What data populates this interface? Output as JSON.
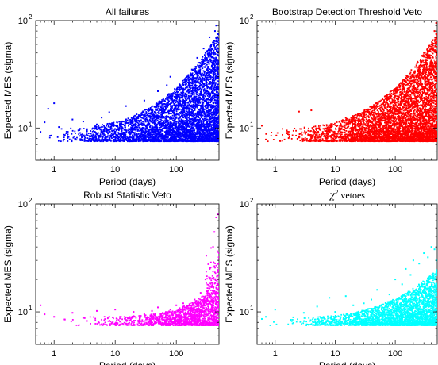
{
  "chart_data": [
    {
      "type": "scatter",
      "title": "All failures",
      "xlabel": "Period (days)",
      "ylabel": "Expected MES (sigma)",
      "xscale": "log",
      "yscale": "log",
      "xlim": [
        0.5,
        500
      ],
      "ylim": [
        5,
        100
      ],
      "xticks": [
        {
          "value": 1,
          "label": "1"
        },
        {
          "value": 10,
          "label": "10"
        },
        {
          "value": 100,
          "label": "100"
        }
      ],
      "yticks": [
        {
          "value": 10,
          "base": "10",
          "exp": "1"
        },
        {
          "value": 100,
          "base": "10",
          "exp": "2"
        }
      ],
      "color": "#0000ff",
      "density": "dense",
      "points": [
        [
          0.6,
          9.2
        ],
        [
          0.7,
          11.3
        ],
        [
          0.8,
          15.1
        ],
        [
          0.9,
          8.5
        ],
        [
          1.0,
          17.0
        ],
        [
          1.2,
          10.2
        ],
        [
          1.5,
          8.6
        ],
        [
          2.0,
          12.0
        ],
        [
          2.5,
          9.5
        ],
        [
          3.0,
          11.5
        ],
        [
          4.0,
          8.9
        ],
        [
          5.0,
          10.8
        ],
        [
          6.0,
          12.5
        ],
        [
          8.0,
          14.0
        ],
        [
          10.0,
          9.8
        ],
        [
          12.0,
          11.0
        ],
        [
          15.0,
          16.0
        ],
        [
          20.0,
          10.5
        ],
        [
          25.0,
          13.0
        ],
        [
          30.0,
          18.0
        ],
        [
          40.0,
          12.0
        ],
        [
          50.0,
          22.0
        ],
        [
          60.0,
          15.0
        ],
        [
          70.0,
          25.0
        ],
        [
          80.0,
          30.0
        ],
        [
          100.0,
          18.0
        ],
        [
          120.0,
          20.0
        ],
        [
          150.0,
          28.0
        ],
        [
          180.0,
          35.0
        ],
        [
          200.0,
          25.0
        ],
        [
          220.0,
          45.0
        ],
        [
          250.0,
          40.0
        ],
        [
          280.0,
          55.0
        ],
        [
          300.0,
          50.0
        ],
        [
          350.0,
          70.0
        ],
        [
          400.0,
          60.0
        ],
        [
          430.0,
          80.0
        ],
        [
          450.0,
          90.0
        ],
        [
          480.0,
          75.0
        ],
        [
          500.0,
          65.0
        ]
      ]
    },
    {
      "type": "scatter",
      "title": "Bootstrap Detection Threshold Veto",
      "xlabel": "Period (days)",
      "ylabel": "Expected MES (sigma)",
      "xscale": "log",
      "yscale": "log",
      "xlim": [
        0.5,
        500
      ],
      "ylim": [
        5,
        100
      ],
      "xticks": [
        {
          "value": 1,
          "label": "1"
        },
        {
          "value": 10,
          "label": "10"
        },
        {
          "value": 100,
          "label": "100"
        }
      ],
      "yticks": [
        {
          "value": 10,
          "base": "10",
          "exp": "1"
        },
        {
          "value": 100,
          "base": "10",
          "exp": "2"
        }
      ],
      "color": "#ff0000",
      "density": "dense",
      "points": [
        [
          0.6,
          10.5
        ],
        [
          0.7,
          7.8
        ],
        [
          2.5,
          14.2
        ],
        [
          4.0,
          14.6
        ],
        [
          8.0,
          9.2
        ],
        [
          12.0,
          10.3
        ],
        [
          15.0,
          12.5
        ],
        [
          20.0,
          9.5
        ],
        [
          30.0,
          11.8
        ],
        [
          40.0,
          13.5
        ],
        [
          50.0,
          10.8
        ],
        [
          60.0,
          16.0
        ],
        [
          80.0,
          12.5
        ],
        [
          100.0,
          20.0
        ],
        [
          120.0,
          15.0
        ],
        [
          150.0,
          25.0
        ],
        [
          180.0,
          30.0
        ],
        [
          200.0,
          22.0
        ],
        [
          230.0,
          40.0
        ],
        [
          260.0,
          35.0
        ],
        [
          300.0,
          50.0
        ],
        [
          350.0,
          45.0
        ],
        [
          400.0,
          60.0
        ],
        [
          450.0,
          80.0
        ],
        [
          480.0,
          95.0
        ],
        [
          500.0,
          70.0
        ]
      ]
    },
    {
      "type": "scatter",
      "title": "Robust Statistic Veto",
      "xlabel": "Period (days)",
      "ylabel": "Expected MES (sigma)",
      "xscale": "log",
      "yscale": "log",
      "xlim": [
        0.5,
        500
      ],
      "ylim": [
        5,
        100
      ],
      "xticks": [
        {
          "value": 1,
          "label": "1"
        },
        {
          "value": 10,
          "label": "10"
        },
        {
          "value": 100,
          "label": "100"
        }
      ],
      "yticks": [
        {
          "value": 10,
          "base": "10",
          "exp": "1"
        },
        {
          "value": 100,
          "base": "10",
          "exp": "2"
        }
      ],
      "color": "#ff00ff",
      "density": "sparse",
      "points": [
        [
          0.6,
          11.5
        ],
        [
          0.7,
          9.5
        ],
        [
          1.0,
          9.0
        ],
        [
          1.5,
          8.5
        ],
        [
          2.0,
          9.8
        ],
        [
          3.0,
          8.8
        ],
        [
          5.0,
          10.2
        ],
        [
          8.0,
          9.0
        ],
        [
          10.0,
          10.5
        ],
        [
          12.0,
          9.0
        ],
        [
          15.0,
          8.9
        ],
        [
          20.0,
          10.0
        ],
        [
          30.0,
          9.5
        ],
        [
          40.0,
          10.2
        ],
        [
          50.0,
          11.0
        ],
        [
          60.0,
          9.8
        ],
        [
          80.0,
          10.5
        ],
        [
          100.0,
          11.5
        ],
        [
          130.0,
          12.0
        ],
        [
          160.0,
          10.8
        ],
        [
          200.0,
          13.0
        ],
        [
          250.0,
          15.0
        ],
        [
          300.0,
          20.0
        ],
        [
          350.0,
          25.0
        ],
        [
          400.0,
          40.0
        ],
        [
          420.0,
          55.0
        ],
        [
          450.0,
          75.0
        ],
        [
          480.0,
          80.0
        ],
        [
          500.0,
          35.0
        ]
      ]
    },
    {
      "type": "scatter",
      "title": "χ² vetoes",
      "title_base": "χ",
      "title_sup": "2",
      "title_rest": " vetoes",
      "xlabel": "Period (days)",
      "ylabel": "Expected MES (sigma)",
      "xscale": "log",
      "yscale": "log",
      "xlim": [
        0.5,
        500
      ],
      "ylim": [
        5,
        100
      ],
      "xticks": [
        {
          "value": 1,
          "label": "1"
        },
        {
          "value": 10,
          "label": "10"
        },
        {
          "value": 100,
          "label": "100"
        }
      ],
      "yticks": [
        {
          "value": 10,
          "base": "10",
          "exp": "1"
        },
        {
          "value": 100,
          "base": "10",
          "exp": "2"
        }
      ],
      "color": "#00ffff",
      "density": "medium",
      "points": [
        [
          0.6,
          8.6
        ],
        [
          0.7,
          9.0
        ],
        [
          1.0,
          10.5
        ],
        [
          2.0,
          8.9
        ],
        [
          3.0,
          9.8
        ],
        [
          5.0,
          11.2
        ],
        [
          8.0,
          13.5
        ],
        [
          10.0,
          10.0
        ],
        [
          15.0,
          14.0
        ],
        [
          20.0,
          11.5
        ],
        [
          30.0,
          12.0
        ],
        [
          40.0,
          13.0
        ],
        [
          50.0,
          16.0
        ],
        [
          60.0,
          11.0
        ],
        [
          80.0,
          14.5
        ],
        [
          100.0,
          20.0
        ],
        [
          130.0,
          18.0
        ],
        [
          150.0,
          25.0
        ],
        [
          180.0,
          22.0
        ],
        [
          200.0,
          30.0
        ],
        [
          250.0,
          28.0
        ],
        [
          300.0,
          35.0
        ],
        [
          350.0,
          32.0
        ],
        [
          400.0,
          40.0
        ],
        [
          450.0,
          38.0
        ],
        [
          500.0,
          30.0
        ]
      ]
    }
  ]
}
